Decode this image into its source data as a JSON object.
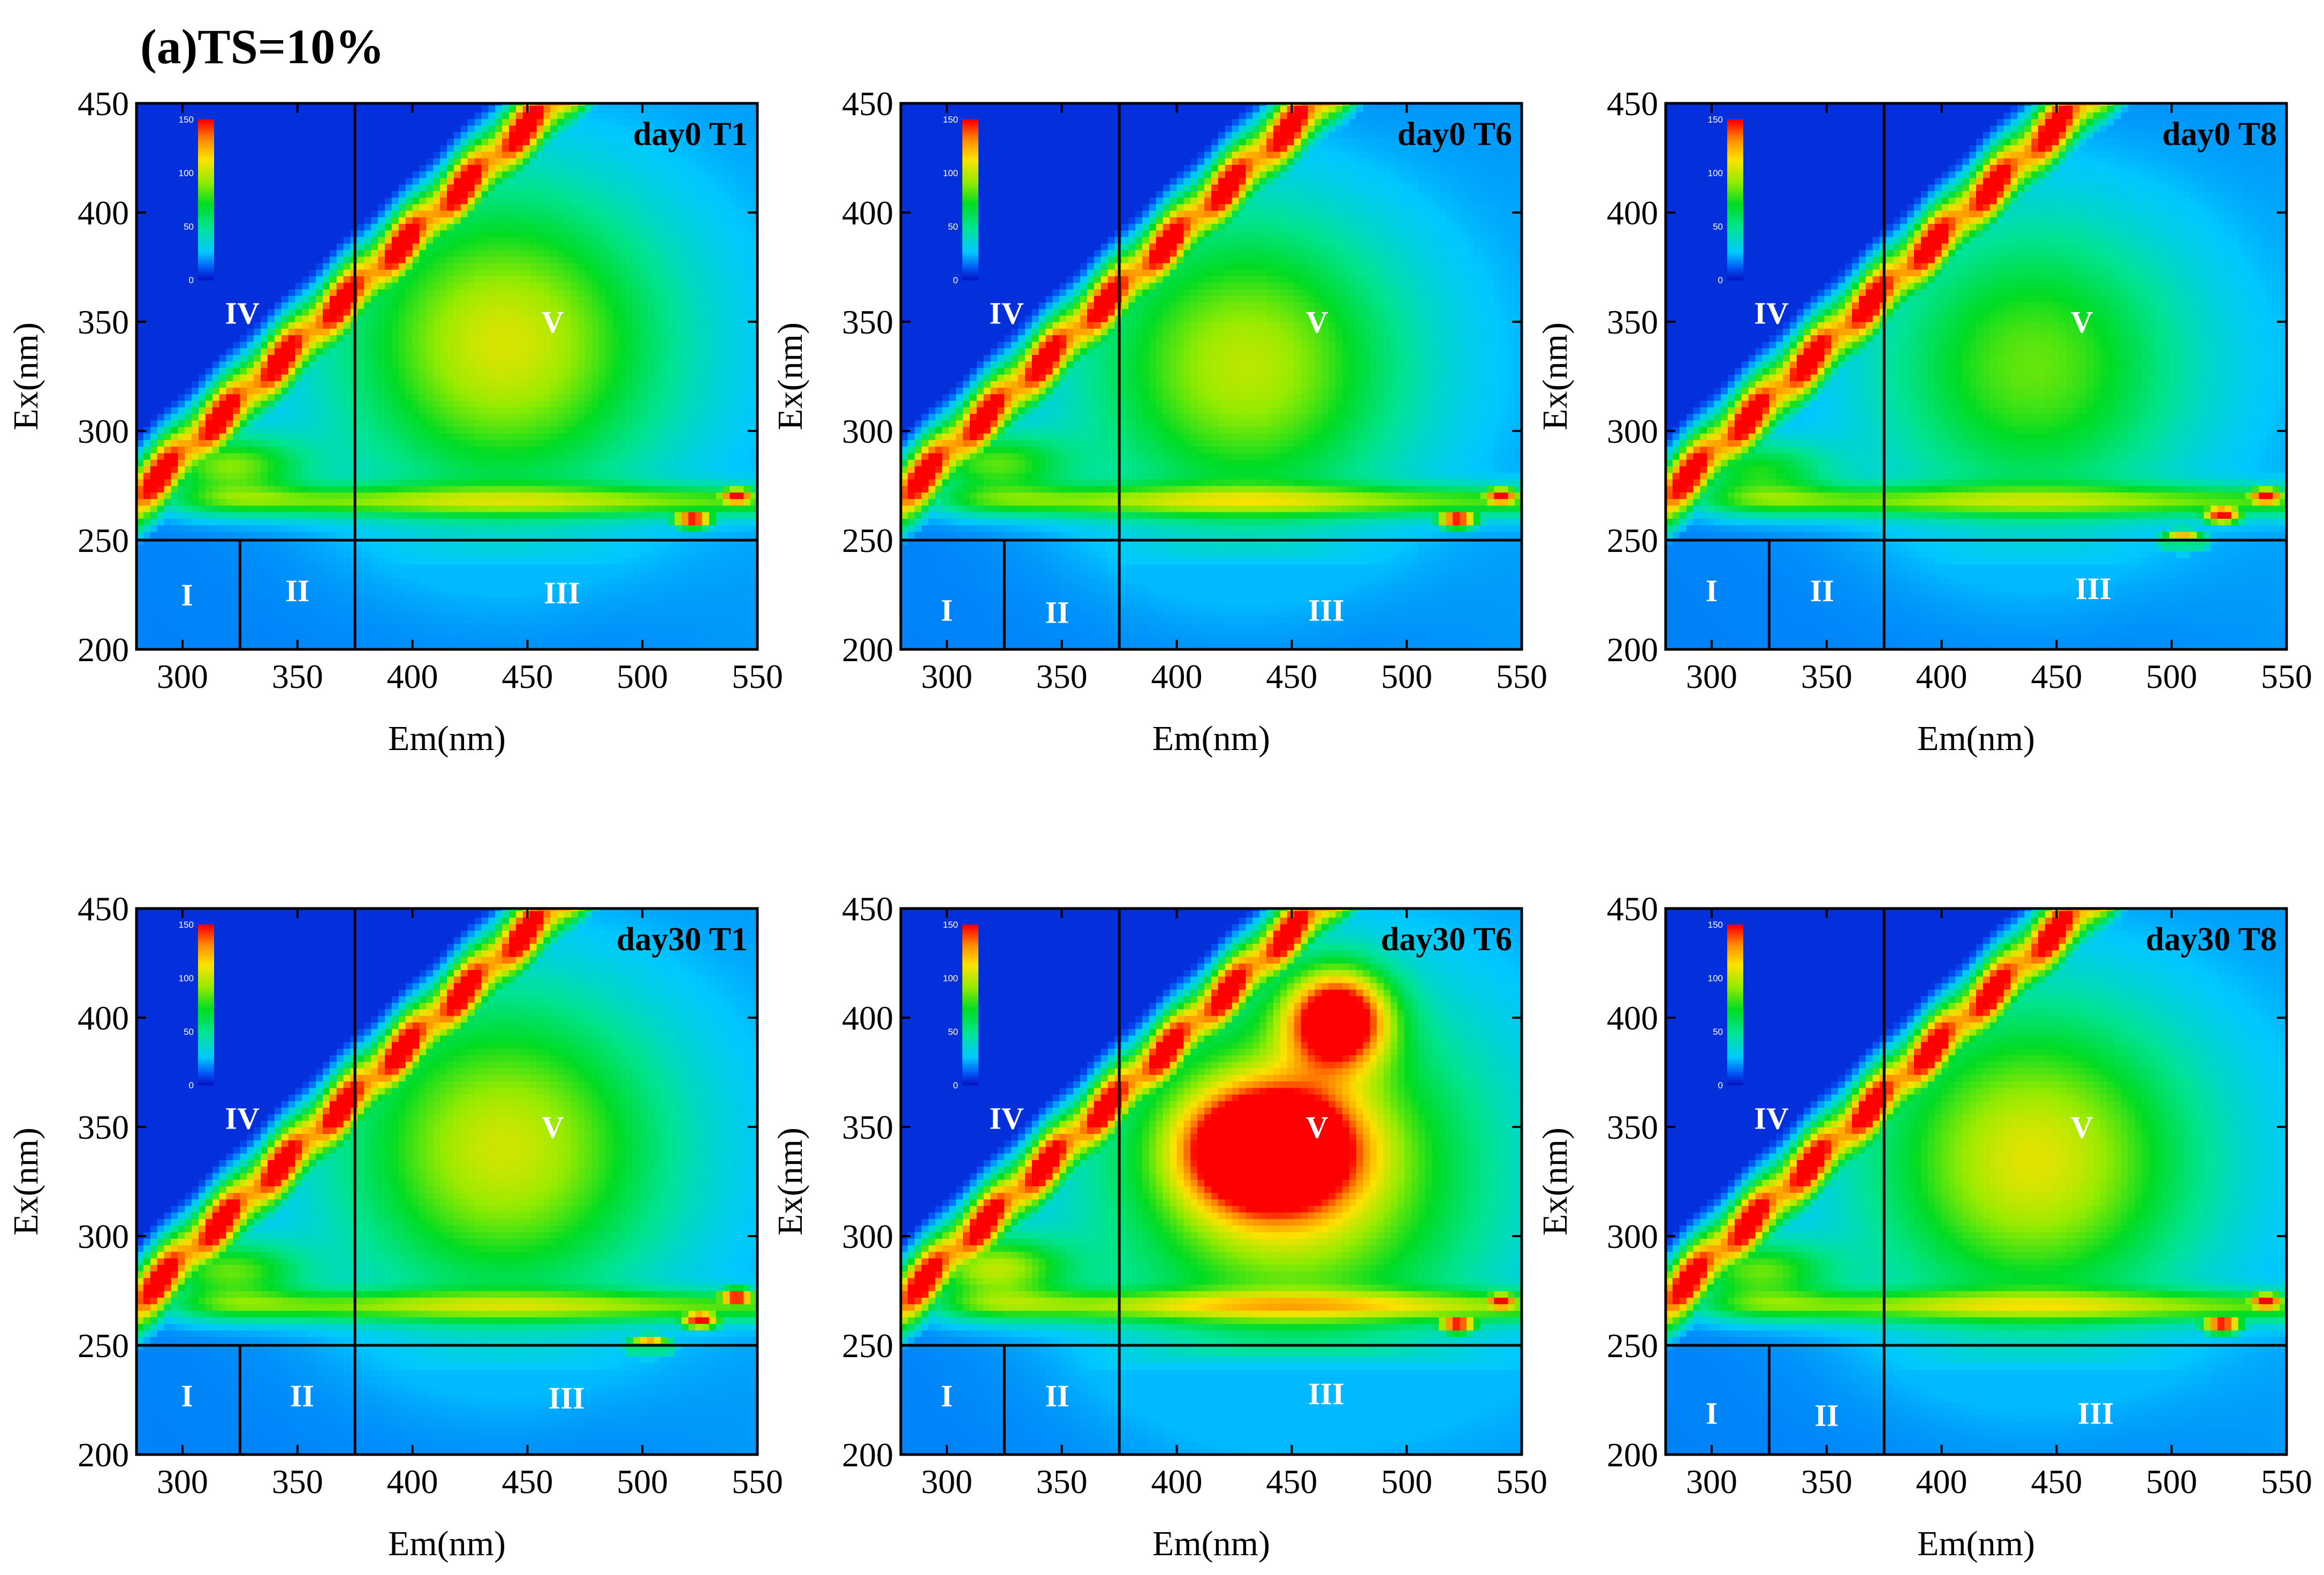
{
  "figure_title": "(a)TS=10%",
  "chart_data": [
    {
      "type": "heatmap",
      "title": "day0 T1",
      "xlabel": "Em(nm)",
      "ylabel": "Ex(nm)",
      "xlim": [
        280,
        550
      ],
      "ylim": [
        200,
        450
      ],
      "xticks": [
        "300",
        "350",
        "400",
        "450",
        "500",
        "550"
      ],
      "yticks": [
        "200",
        "250",
        "300",
        "350",
        "400",
        "450"
      ],
      "colorbar": {
        "range": [
          0,
          150
        ],
        "ticks": [
          "0",
          "50",
          "100",
          "150"
        ]
      },
      "region_boundaries": {
        "ex_split": 250,
        "em_split_1": 325,
        "em_split_2": 375
      },
      "regions": [
        {
          "label": "I",
          "em": 302,
          "ex": 225
        },
        {
          "label": "II",
          "em": 350,
          "ex": 227
        },
        {
          "label": "III",
          "em": 465,
          "ex": 226
        },
        {
          "label": "IV",
          "em": 326,
          "ex": 354
        },
        {
          "label": "V",
          "em": 461,
          "ex": 350
        }
      ],
      "peaks": [
        {
          "em": 440,
          "ex": 340,
          "intensity": 88,
          "em_spread": 72,
          "ex_spread": 72
        },
        {
          "em": 320,
          "ex": 284,
          "intensity": 70,
          "em_spread": 32,
          "ex_spread": 14
        }
      ],
      "scatter_spots": [
        {
          "em": 541,
          "ex": 270
        },
        {
          "em": 522,
          "ex": 260
        }
      ]
    },
    {
      "type": "heatmap",
      "title": "day0 T6",
      "xlabel": "Em(nm)",
      "ylabel": "Ex(nm)",
      "xlim": [
        280,
        550
      ],
      "ylim": [
        200,
        450
      ],
      "xticks": [
        "300",
        "350",
        "400",
        "450",
        "500",
        "550"
      ],
      "yticks": [
        "200",
        "250",
        "300",
        "350",
        "400",
        "450"
      ],
      "colorbar": {
        "range": [
          0,
          150
        ],
        "ticks": [
          "0",
          "50",
          "100",
          "150"
        ]
      },
      "region_boundaries": {
        "ex_split": 250,
        "em_split_1": 325,
        "em_split_2": 375
      },
      "regions": [
        {
          "label": "I",
          "em": 300,
          "ex": 218
        },
        {
          "label": "II",
          "em": 348,
          "ex": 217
        },
        {
          "label": "III",
          "em": 465,
          "ex": 218
        },
        {
          "label": "IV",
          "em": 326,
          "ex": 354
        },
        {
          "label": "V",
          "em": 461,
          "ex": 350
        }
      ],
      "peaks": [
        {
          "em": 430,
          "ex": 330,
          "intensity": 82,
          "em_spread": 70,
          "ex_spread": 70
        },
        {
          "em": 320,
          "ex": 285,
          "intensity": 62,
          "em_spread": 32,
          "ex_spread": 14
        }
      ],
      "scatter_spots": [
        {
          "em": 541,
          "ex": 270
        },
        {
          "em": 522,
          "ex": 260
        }
      ]
    },
    {
      "type": "heatmap",
      "title": "day0 T8",
      "xlabel": "Em(nm)",
      "ylabel": "Ex(nm)",
      "xlim": [
        280,
        550
      ],
      "ylim": [
        200,
        450
      ],
      "xticks": [
        "300",
        "350",
        "400",
        "450",
        "500",
        "550"
      ],
      "yticks": [
        "200",
        "250",
        "300",
        "350",
        "400",
        "450"
      ],
      "colorbar": {
        "range": [
          0,
          150
        ],
        "ticks": [
          "0",
          "50",
          "100",
          "150"
        ]
      },
      "region_boundaries": {
        "ex_split": 250,
        "em_split_1": 325,
        "em_split_2": 375
      },
      "regions": [
        {
          "label": "I",
          "em": 300,
          "ex": 227
        },
        {
          "label": "II",
          "em": 348,
          "ex": 227
        },
        {
          "label": "III",
          "em": 466,
          "ex": 228
        },
        {
          "label": "IV",
          "em": 326,
          "ex": 354
        },
        {
          "label": "V",
          "em": 461,
          "ex": 350
        }
      ],
      "peaks": [
        {
          "em": 440,
          "ex": 330,
          "intensity": 68,
          "em_spread": 68,
          "ex_spread": 68
        },
        {
          "em": 320,
          "ex": 282,
          "intensity": 55,
          "em_spread": 32,
          "ex_spread": 14
        }
      ],
      "scatter_spots": [
        {
          "em": 541,
          "ex": 270
        },
        {
          "em": 522,
          "ex": 262
        },
        {
          "em": 505,
          "ex": 250
        }
      ]
    },
    {
      "type": "heatmap",
      "title": "day30 T1",
      "xlabel": "Em(nm)",
      "ylabel": "Ex(nm)",
      "xlim": [
        280,
        550
      ],
      "ylim": [
        200,
        450
      ],
      "xticks": [
        "300",
        "350",
        "400",
        "450",
        "500",
        "550"
      ],
      "yticks": [
        "200",
        "250",
        "300",
        "350",
        "400",
        "450"
      ],
      "colorbar": {
        "range": [
          0,
          150
        ],
        "ticks": [
          "0",
          "50",
          "100",
          "150"
        ]
      },
      "region_boundaries": {
        "ex_split": 250,
        "em_split_1": 325,
        "em_split_2": 375
      },
      "regions": [
        {
          "label": "I",
          "em": 302,
          "ex": 227
        },
        {
          "label": "II",
          "em": 352,
          "ex": 227
        },
        {
          "label": "III",
          "em": 467,
          "ex": 226
        },
        {
          "label": "IV",
          "em": 326,
          "ex": 354
        },
        {
          "label": "V",
          "em": 461,
          "ex": 350
        }
      ],
      "peaks": [
        {
          "em": 440,
          "ex": 340,
          "intensity": 86,
          "em_spread": 72,
          "ex_spread": 72
        },
        {
          "em": 320,
          "ex": 284,
          "intensity": 65,
          "em_spread": 32,
          "ex_spread": 14
        }
      ],
      "scatter_spots": [
        {
          "em": 541,
          "ex": 272
        },
        {
          "em": 525,
          "ex": 262
        },
        {
          "em": 503,
          "ex": 250
        }
      ]
    },
    {
      "type": "heatmap",
      "title": "day30 T6",
      "xlabel": "Em(nm)",
      "ylabel": "Ex(nm)",
      "xlim": [
        280,
        550
      ],
      "ylim": [
        200,
        450
      ],
      "xticks": [
        "300",
        "350",
        "400",
        "450",
        "500",
        "550"
      ],
      "yticks": [
        "200",
        "250",
        "300",
        "350",
        "400",
        "450"
      ],
      "colorbar": {
        "range": [
          0,
          150
        ],
        "ticks": [
          "0",
          "50",
          "100",
          "150"
        ]
      },
      "region_boundaries": {
        "ex_split": 250,
        "em_split_1": 325,
        "em_split_2": 375
      },
      "regions": [
        {
          "label": "I",
          "em": 300,
          "ex": 227
        },
        {
          "label": "II",
          "em": 348,
          "ex": 227
        },
        {
          "label": "III",
          "em": 465,
          "ex": 228
        },
        {
          "label": "IV",
          "em": 326,
          "ex": 354
        },
        {
          "label": "V",
          "em": 461,
          "ex": 350
        }
      ],
      "peaks": [
        {
          "em": 440,
          "ex": 340,
          "intensity": 150,
          "em_spread": 34,
          "ex_spread": 26
        },
        {
          "em": 470,
          "ex": 400,
          "intensity": 138,
          "em_spread": 22,
          "ex_spread": 22
        },
        {
          "em": 450,
          "ex": 330,
          "intensity": 95,
          "em_spread": 80,
          "ex_spread": 80
        },
        {
          "em": 320,
          "ex": 285,
          "intensity": 78,
          "em_spread": 32,
          "ex_spread": 15
        }
      ],
      "scatter_spots": [
        {
          "em": 541,
          "ex": 270
        },
        {
          "em": 522,
          "ex": 260
        }
      ]
    },
    {
      "type": "heatmap",
      "title": "day30 T8",
      "xlabel": "Em(nm)",
      "ylabel": "Ex(nm)",
      "xlim": [
        280,
        550
      ],
      "ylim": [
        200,
        450
      ],
      "xticks": [
        "300",
        "350",
        "400",
        "450",
        "500",
        "550"
      ],
      "yticks": [
        "200",
        "250",
        "300",
        "350",
        "400",
        "450"
      ],
      "colorbar": {
        "range": [
          0,
          150
        ],
        "ticks": [
          "0",
          "50",
          "100",
          "150"
        ]
      },
      "region_boundaries": {
        "ex_split": 250,
        "em_split_1": 325,
        "em_split_2": 375
      },
      "regions": [
        {
          "label": "I",
          "em": 300,
          "ex": 219
        },
        {
          "label": "II",
          "em": 350,
          "ex": 218
        },
        {
          "label": "III",
          "em": 467,
          "ex": 219
        },
        {
          "label": "IV",
          "em": 326,
          "ex": 354
        },
        {
          "label": "V",
          "em": 461,
          "ex": 350
        }
      ],
      "peaks": [
        {
          "em": 440,
          "ex": 335,
          "intensity": 90,
          "em_spread": 72,
          "ex_spread": 72
        },
        {
          "em": 320,
          "ex": 284,
          "intensity": 65,
          "em_spread": 32,
          "ex_spread": 14
        }
      ],
      "scatter_spots": [
        {
          "em": 541,
          "ex": 270
        },
        {
          "em": 522,
          "ex": 260
        }
      ]
    }
  ]
}
